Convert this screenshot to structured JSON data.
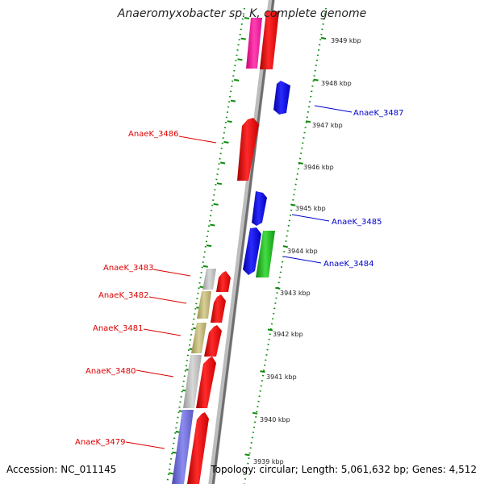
{
  "title": "Anaeromyxobacter sp. K, complete genome",
  "footer": {
    "accession": "Accession: NC_011145",
    "summary": "Topology: circular; Length: 5,061,632 bp; Genes: 4,512"
  },
  "colors": {
    "forward_strand": "#ff0000",
    "reverse_strand": "#0000ee",
    "label_red": "#dd0000",
    "label_blue": "#0000cc",
    "scale_dots": "#008800",
    "backbone": "#9a9a9a",
    "gene_magenta": "#ff1aa0",
    "gene_green": "#22bb22",
    "gene_gray": "#bbbbbb",
    "gene_olive": "#c0b878",
    "gene_purple": "#7070dd"
  },
  "scale": {
    "unit": "kbp",
    "ticks": [
      "3949 kbp",
      "3948 kbp",
      "3947 kbp",
      "3946 kbp",
      "3945 kbp",
      "3944 kbp",
      "3943 kbp",
      "3942 kbp",
      "3941 kbp",
      "3940 kbp",
      "3939 kbp"
    ]
  },
  "genes": [
    {
      "name": "AnaeK_3487",
      "strand": "reverse",
      "color": "blue"
    },
    {
      "name": "AnaeK_3486",
      "strand": "forward",
      "color": "red"
    },
    {
      "name": "AnaeK_3485",
      "strand": "reverse",
      "color": "blue"
    },
    {
      "name": "AnaeK_3484",
      "strand": "reverse",
      "color": "blue"
    },
    {
      "name": "AnaeK_3483",
      "strand": "forward",
      "color": "red"
    },
    {
      "name": "AnaeK_3482",
      "strand": "forward",
      "color": "red"
    },
    {
      "name": "AnaeK_3481",
      "strand": "forward",
      "color": "red"
    },
    {
      "name": "AnaeK_3480",
      "strand": "forward",
      "color": "red"
    },
    {
      "name": "AnaeK_3479",
      "strand": "forward",
      "color": "red"
    }
  ]
}
